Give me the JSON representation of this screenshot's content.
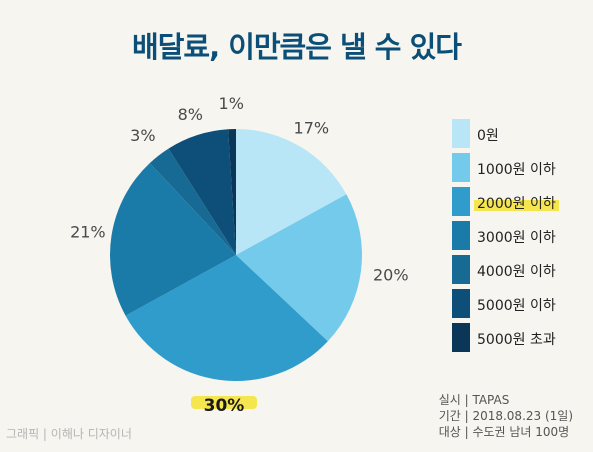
{
  "title": "배달료, 이만큼은 낼 수 있다",
  "chart_data": {
    "type": "pie",
    "title": "배달료, 이만큼은 낼 수 있다",
    "categories": [
      "0원",
      "1000원 이하",
      "2000원 이하",
      "3000원 이하",
      "4000원 이하",
      "5000원 이하",
      "5000원 초과"
    ],
    "values": [
      17,
      20,
      30,
      21,
      3,
      8,
      1
    ],
    "labels": [
      "17%",
      "20%",
      "30%",
      "21%",
      "3%",
      "8%",
      "1%"
    ],
    "colors": [
      "#b9e6f7",
      "#74caeb",
      "#2f9ccc",
      "#1a7ba8",
      "#176a93",
      "#0e4f7a",
      "#0a3658"
    ],
    "highlight_category": "2000원 이하",
    "highlight_color": "#f5e64f",
    "start": "12 o'clock, clockwise",
    "legend_position": "right"
  },
  "legend": [
    {
      "label": "0원",
      "color": "#b9e6f7"
    },
    {
      "label": "1000원 이하",
      "color": "#74caeb"
    },
    {
      "label": "2000원 이하",
      "color": "#2f9ccc"
    },
    {
      "label": "3000원 이하",
      "color": "#1a7ba8"
    },
    {
      "label": "4000원 이하",
      "color": "#176a93"
    },
    {
      "label": "5000원 이하",
      "color": "#0e4f7a"
    },
    {
      "label": "5000원 초과",
      "color": "#0a3658"
    }
  ],
  "footer": {
    "line1": "실시 | TAPAS",
    "line2": "기간 | 2018.08.23 (1일)",
    "line3": "대상 | 수도권 남녀 100명"
  },
  "credit": "그래픽 | 이해나 디자이너"
}
